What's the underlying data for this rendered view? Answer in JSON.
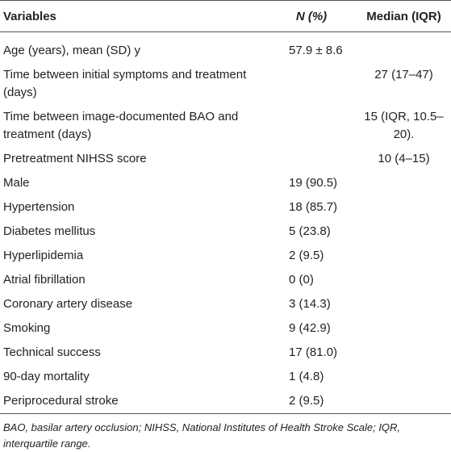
{
  "table": {
    "header": [
      "Variables",
      "N (%)",
      "Median (IQR)"
    ],
    "rows": [
      [
        "Age (years), mean (SD) y",
        "57.9 ± 8.6",
        null
      ],
      [
        "Time between initial symptoms and treatment (days)",
        null,
        "27 (17–47)"
      ],
      [
        "Time between image-documented BAO and treatment (days)",
        null,
        "15 (IQR, 10.5–20)."
      ],
      [
        "Pretreatment NIHSS score",
        null,
        "10 (4–15)"
      ],
      [
        "Male",
        "19 (90.5)",
        null
      ],
      [
        "Hypertension",
        "18 (85.7)",
        null
      ],
      [
        "Diabetes mellitus",
        "5 (23.8)",
        null
      ],
      [
        "Hyperlipidemia",
        "2 (9.5)",
        null
      ],
      [
        "Atrial fibrillation",
        "0 (0)",
        null
      ],
      [
        "Coronary artery disease",
        "3 (14.3)",
        null
      ],
      [
        "Smoking",
        "9 (42.9)",
        null
      ],
      [
        "Technical success",
        "17 (81.0)",
        null
      ],
      [
        "90-day mortality",
        "1 (4.8)",
        null
      ],
      [
        "Periprocedural stroke",
        "2 (9.5)",
        null
      ]
    ]
  },
  "footnote": "BAO, basilar artery occlusion; NIHSS, National Institutes of Health Stroke Scale; IQR, interquartile range."
}
